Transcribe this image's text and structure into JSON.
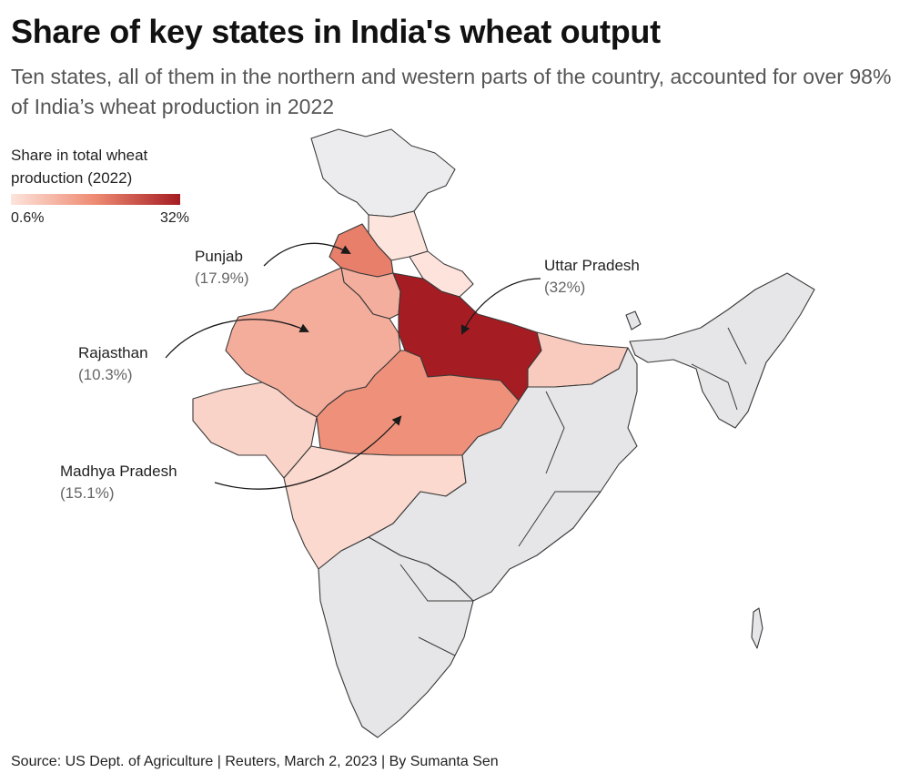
{
  "title": "Share of key states in India's wheat output",
  "subtitle": "Ten states, all of them in the northern and western parts of the country, accounted for over 98% of India’s wheat production in 2022",
  "legend": {
    "title_line1": "Share in total wheat",
    "title_line2": "production (2022)",
    "min_label": "0.6%",
    "max_label": "32%",
    "min_value": 0.6,
    "max_value": 32
  },
  "colors": {
    "scale_low": "#fde4dc",
    "scale_mid": "#ee8a72",
    "scale_high": "#a51c22",
    "no_data": "#e6e6e8",
    "border": "#3a3a3a"
  },
  "labeled_states": [
    {
      "name": "Punjab",
      "value_label": "(17.9%)",
      "share": 17.9
    },
    {
      "name": "Rajasthan",
      "value_label": "(10.3%)",
      "share": 10.3
    },
    {
      "name": "Madhya Pradesh",
      "value_label": "(15.1%)",
      "share": 15.1
    },
    {
      "name": "Uttar Pradesh",
      "value_label": "(32%)",
      "share": 32
    }
  ],
  "source": "Source: US Dept. of Agriculture | Reuters, March 2, 2023 | By Sumanta Sen"
}
